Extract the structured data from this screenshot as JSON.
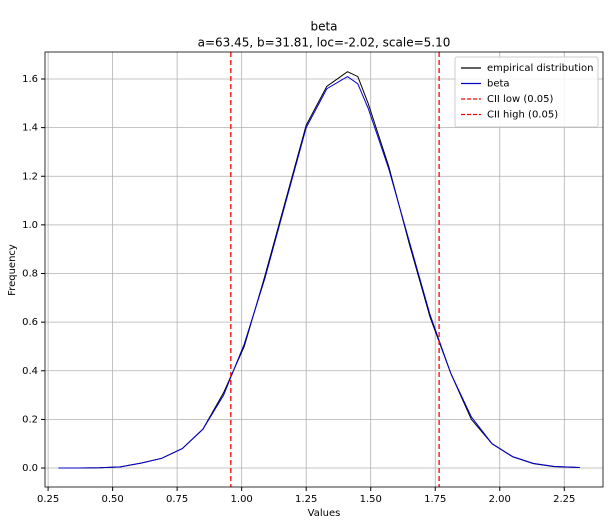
{
  "chart_data": {
    "type": "line",
    "title": "beta",
    "subtitle": "a=63.45, b=31.81, loc=-2.02, scale=5.10",
    "xlabel": "Values",
    "ylabel": "Frequency",
    "x": [
      0.29,
      0.37,
      0.45,
      0.53,
      0.61,
      0.69,
      0.77,
      0.85,
      0.93,
      1.01,
      1.09,
      1.17,
      1.25,
      1.33,
      1.41,
      1.45,
      1.49,
      1.57,
      1.65,
      1.73,
      1.81,
      1.89,
      1.97,
      2.05,
      2.13,
      2.21,
      2.31
    ],
    "series": [
      {
        "name": "empirical distribution",
        "color": "#000000",
        "values": [
          0.0,
          0.0,
          0.001,
          0.005,
          0.02,
          0.04,
          0.08,
          0.16,
          0.31,
          0.5,
          0.79,
          1.1,
          1.41,
          1.57,
          1.63,
          1.61,
          1.5,
          1.24,
          0.92,
          0.62,
          0.39,
          0.2,
          0.1,
          0.046,
          0.018,
          0.006,
          0.002
        ]
      },
      {
        "name": "beta",
        "color": "#0000cc",
        "values": [
          0.0,
          0.0,
          0.001,
          0.005,
          0.02,
          0.04,
          0.08,
          0.16,
          0.3,
          0.51,
          0.78,
          1.09,
          1.4,
          1.56,
          1.61,
          1.58,
          1.48,
          1.23,
          0.93,
          0.63,
          0.39,
          0.21,
          0.1,
          0.047,
          0.019,
          0.007,
          0.002
        ]
      }
    ],
    "vlines": [
      {
        "name": "CII low (0.05)",
        "color": "#ff0000",
        "x": 0.958
      },
      {
        "name": "CII high (0.05)",
        "color": "#ff0000",
        "x": 1.765
      }
    ],
    "xlim": [
      0.238,
      2.4
    ],
    "ylim": [
      -0.078,
      1.711
    ],
    "xticks": [
      0.25,
      {
        "value": 0.5,
        "label": "0.50"
      },
      0.75,
      {
        "value": 1,
        "label": "1.00"
      },
      1.25,
      {
        "value": 1.5,
        "label": "1.50"
      },
      1.75,
      {
        "value": 2,
        "label": "2.00"
      },
      2.25
    ],
    "yticks": [
      {
        "value": 0,
        "label": "0.0"
      },
      0.2,
      0.4,
      0.6,
      0.8,
      {
        "value": 1,
        "label": "1.0"
      },
      1.2,
      1.4,
      1.6
    ],
    "grid": true,
    "legend": "upper right"
  }
}
